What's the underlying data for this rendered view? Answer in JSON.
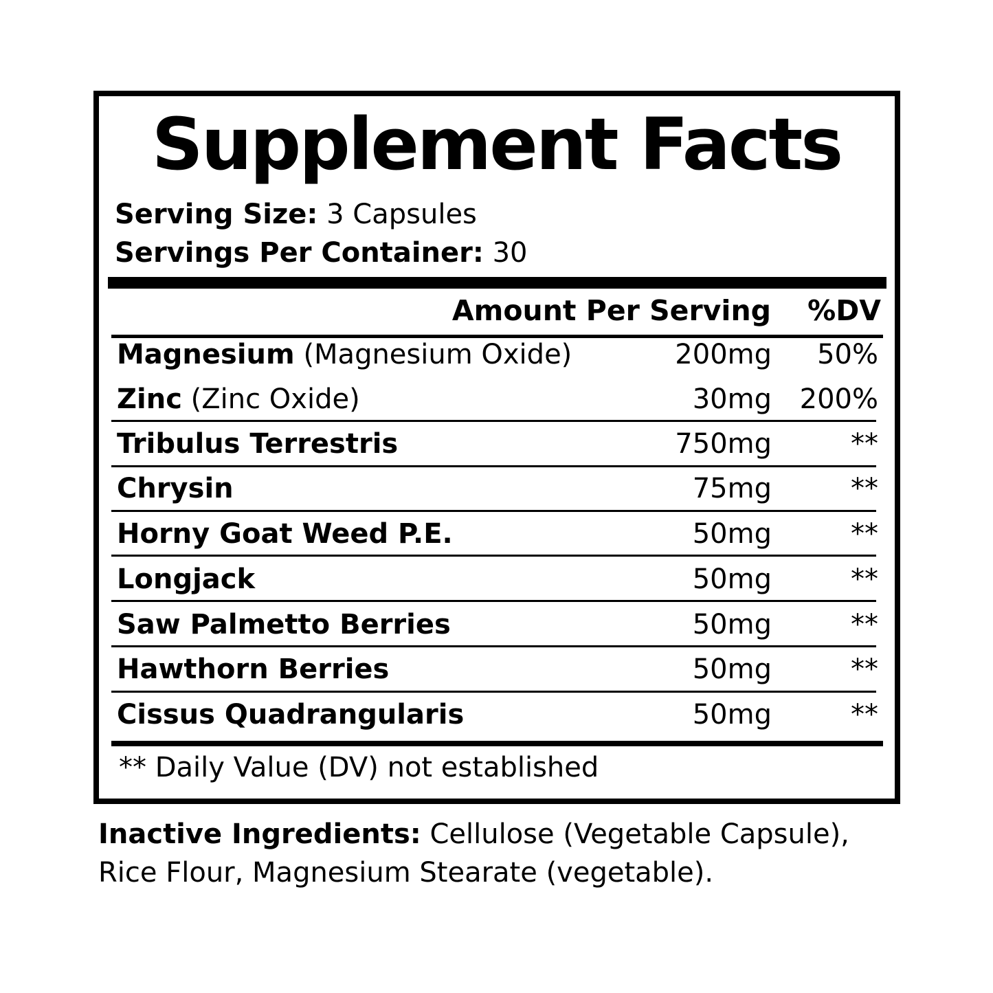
{
  "title": "Supplement Facts",
  "serving_size": {
    "label": "Serving Size:",
    "value": "3 Capsules"
  },
  "servings_per_container": {
    "label": "Servings Per Container:",
    "value": "30"
  },
  "header": {
    "amount": "Amount Per Serving",
    "dv": "%DV"
  },
  "rows": [
    {
      "name": "Magnesium",
      "detail": "(Magnesium Oxide)",
      "amount": "200mg",
      "dv": "50%",
      "rule_after": false
    },
    {
      "name": "Zinc",
      "detail": "(Zinc Oxide)",
      "amount": "30mg",
      "dv": "200%",
      "rule_after": true
    },
    {
      "name": "Tribulus Terrestris",
      "detail": "",
      "amount": "750mg",
      "dv": "**",
      "rule_after": true
    },
    {
      "name": "Chrysin",
      "detail": "",
      "amount": "75mg",
      "dv": "**",
      "rule_after": true
    },
    {
      "name": "Horny Goat Weed P.E.",
      "detail": "",
      "amount": "50mg",
      "dv": "**",
      "rule_after": true
    },
    {
      "name": "Longjack",
      "detail": "",
      "amount": "50mg",
      "dv": "**",
      "rule_after": true
    },
    {
      "name": "Saw Palmetto Berries",
      "detail": "",
      "amount": "50mg",
      "dv": "**",
      "rule_after": true
    },
    {
      "name": "Hawthorn Berries",
      "detail": "",
      "amount": "50mg",
      "dv": "**",
      "rule_after": true
    },
    {
      "name": "Cissus Quadrangularis",
      "detail": "",
      "amount": "50mg",
      "dv": "**",
      "rule_after": false
    }
  ],
  "footnote": "** Daily Value (DV) not established",
  "inactive": {
    "label": "Inactive Ingredients:",
    "text": "Cellulose (Vegetable Capsule), Rice Flour, Magnesium Stearate (vegetable)."
  }
}
